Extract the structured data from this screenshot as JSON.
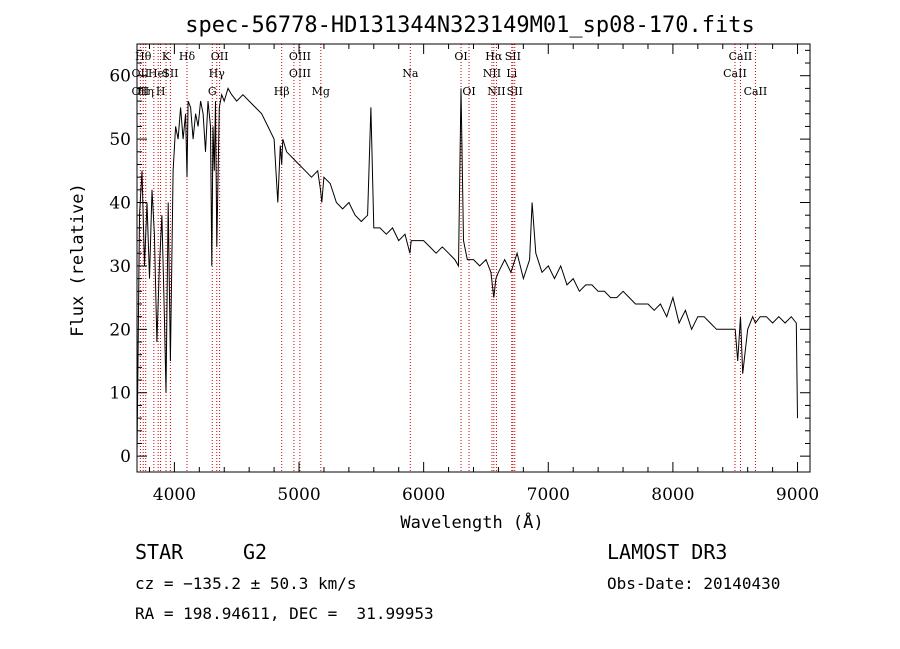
{
  "chart_data": {
    "type": "line",
    "title": "spec-56778-HD131344N323149M01_sp08-170.fits",
    "xlabel": "Wavelength (Å)",
    "ylabel": "Flux (relative)",
    "xlim": [
      3700,
      9100
    ],
    "ylim": [
      -2.5,
      65
    ],
    "xticks": [
      4000,
      5000,
      6000,
      7000,
      8000,
      9000
    ],
    "yticks": [
      0,
      10,
      20,
      30,
      40,
      50,
      60
    ],
    "grid": false,
    "series": [
      {
        "x": [
          3700,
          3720,
          3740,
          3760,
          3780,
          3800,
          3820,
          3840,
          3860,
          3880,
          3900,
          3920,
          3933,
          3950,
          3968,
          3990,
          4010,
          4030,
          4050,
          4070,
          4090,
          4101,
          4110,
          4130,
          4150,
          4170,
          4190,
          4210,
          4230,
          4250,
          4270,
          4290,
          4300,
          4310,
          4320,
          4330,
          4340,
          4360,
          4380,
          4400,
          4430,
          4460,
          4500,
          4550,
          4600,
          4650,
          4700,
          4750,
          4800,
          4830,
          4850,
          4861,
          4870,
          4900,
          4950,
          5000,
          5050,
          5100,
          5150,
          5172,
          5183,
          5200,
          5250,
          5300,
          5350,
          5400,
          5450,
          5500,
          5550,
          5577,
          5600,
          5650,
          5700,
          5750,
          5800,
          5850,
          5890,
          5900,
          5950,
          6000,
          6050,
          6100,
          6150,
          6200,
          6250,
          6280,
          6300,
          6320,
          6350,
          6400,
          6450,
          6500,
          6540,
          6563,
          6580,
          6600,
          6650,
          6700,
          6750,
          6800,
          6850,
          6870,
          6900,
          6950,
          7000,
          7050,
          7100,
          7150,
          7200,
          7250,
          7300,
          7350,
          7400,
          7450,
          7500,
          7550,
          7600,
          7650,
          7700,
          7750,
          7800,
          7850,
          7900,
          7950,
          8000,
          8050,
          8100,
          8150,
          8200,
          8250,
          8300,
          8350,
          8400,
          8450,
          8500,
          8520,
          8542,
          8560,
          8600,
          8640,
          8662,
          8700,
          8750,
          8800,
          8850,
          8900,
          8950,
          8990,
          9000
        ],
        "y": [
          0,
          38,
          45,
          30,
          40,
          28,
          42,
          35,
          18,
          30,
          38,
          22,
          10,
          40,
          15,
          45,
          52,
          50,
          55,
          50,
          54,
          44,
          56,
          55,
          50,
          54,
          52,
          56,
          54,
          48,
          56,
          52,
          30,
          52,
          45,
          56,
          33,
          55,
          57,
          56,
          58,
          57,
          56,
          57,
          56,
          55,
          54,
          52,
          50,
          40,
          49,
          46,
          50,
          48,
          47,
          46,
          45,
          44,
          45,
          42,
          40,
          44,
          43,
          40,
          39,
          40,
          38,
          37,
          38,
          55,
          36,
          36,
          35,
          36,
          34,
          35,
          32,
          34,
          34,
          34,
          33,
          32,
          33,
          32,
          31,
          30,
          58,
          34,
          31,
          31,
          30,
          31,
          29,
          25,
          28,
          29,
          31,
          29,
          32,
          28,
          31,
          40,
          32,
          29,
          30,
          28,
          30,
          27,
          28,
          26,
          27,
          27,
          26,
          26,
          25,
          25,
          26,
          25,
          24,
          24,
          24,
          23,
          24,
          22,
          25,
          21,
          23,
          20,
          22,
          22,
          21,
          20,
          20,
          20,
          20,
          15,
          22,
          13,
          20,
          22,
          21,
          22,
          22,
          21,
          22,
          21,
          22,
          21,
          6
        ]
      }
    ],
    "annotations": [
      {
        "x": 3750,
        "row": 1,
        "text": "Hθ"
      },
      {
        "x": 3727,
        "row": 2,
        "text": "OII"
      },
      {
        "x": 3727,
        "row": 3,
        "text": "OII"
      },
      {
        "x": 3770,
        "row": 3,
        "text": "Hη"
      },
      {
        "x": 3870,
        "row": 2,
        "text": "HeI"
      },
      {
        "x": 3890,
        "row": 3,
        "text": "H"
      },
      {
        "x": 3933,
        "row": 1,
        "text": "K"
      },
      {
        "x": 3968,
        "row": 2,
        "text": "SII"
      },
      {
        "x": 4101,
        "row": 1,
        "text": "Hδ"
      },
      {
        "x": 4340,
        "row": 2,
        "text": "Hγ"
      },
      {
        "x": 4363,
        "row": 1,
        "text": "OII"
      },
      {
        "x": 4304,
        "row": 3,
        "text": "G"
      },
      {
        "x": 4861,
        "row": 3,
        "text": "Hβ"
      },
      {
        "x": 5007,
        "row": 1,
        "text": "OIII"
      },
      {
        "x": 5007,
        "row": 2,
        "text": "OIII"
      },
      {
        "x": 5175,
        "row": 3,
        "text": "Mg"
      },
      {
        "x": 5893,
        "row": 2,
        "text": "Na"
      },
      {
        "x": 6300,
        "row": 1,
        "text": "OI"
      },
      {
        "x": 6364,
        "row": 3,
        "text": "OI"
      },
      {
        "x": 6563,
        "row": 1,
        "text": "Hα"
      },
      {
        "x": 6548,
        "row": 2,
        "text": "NII"
      },
      {
        "x": 6584,
        "row": 3,
        "text": "NII"
      },
      {
        "x": 6716,
        "row": 1,
        "text": "SII"
      },
      {
        "x": 6707,
        "row": 2,
        "text": "Li"
      },
      {
        "x": 6731,
        "row": 3,
        "text": "SII"
      },
      {
        "x": 8542,
        "row": 1,
        "text": "CaII"
      },
      {
        "x": 8498,
        "row": 2,
        "text": "CaII"
      },
      {
        "x": 8662,
        "row": 3,
        "text": "CaII"
      }
    ],
    "line_markers": [
      3727,
      3750,
      3770,
      3835,
      3870,
      3889,
      3933,
      3968,
      4101,
      4304,
      4340,
      4363,
      4861,
      4959,
      5007,
      5175,
      5893,
      6300,
      6364,
      6548,
      6563,
      6584,
      6707,
      6716,
      6731,
      8498,
      8542,
      8662
    ],
    "colors": {
      "spectrum": "#000000",
      "markers": "#cc0000"
    }
  },
  "info": {
    "object_class": "STAR",
    "subclass": "G2",
    "survey": "LAMOST DR3",
    "velocity": "cz = −135.2 ± 50.3 km/s",
    "obs_date": "Obs-Date: 20140430",
    "coords": "RA = 198.94611, DEC =  31.99953"
  }
}
